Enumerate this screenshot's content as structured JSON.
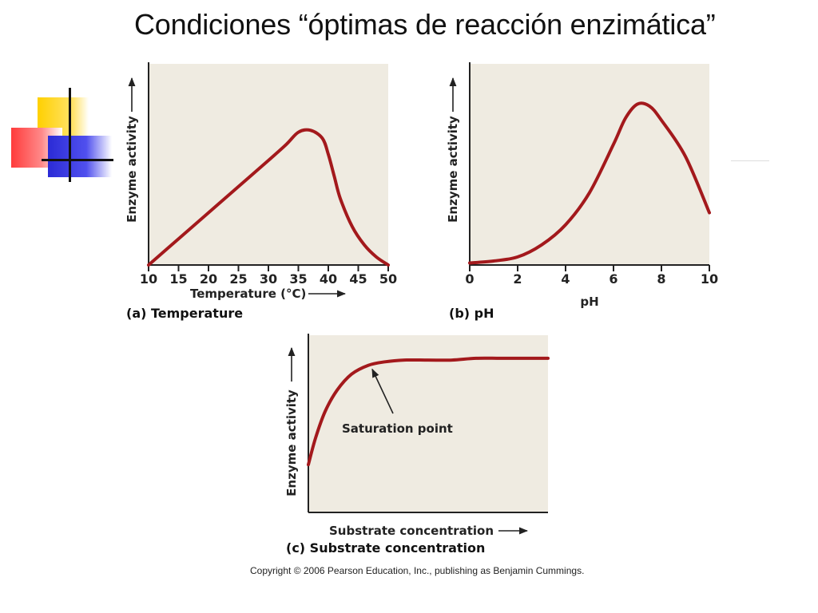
{
  "slide": {
    "title": "Condiciones “óptimas de reacción enzimática”",
    "copyright": "Copyright © 2006 Pearson Education, Inc., publishing as Benjamin Cummings."
  },
  "colors": {
    "curve": "#a3191c",
    "plot_bg": "#efebe1",
    "axis": "#222222"
  },
  "chart_data": [
    {
      "type": "line",
      "panel_label": "(a) Temperature",
      "ylabel": "Enzyme activity",
      "xlabel": "Temperature (°C)",
      "x_ticks": [
        "10",
        "15",
        "20",
        "25",
        "30",
        "35",
        "40",
        "45",
        "50"
      ],
      "xlim": [
        10,
        50
      ],
      "ylim": [
        0,
        1
      ],
      "series": [
        {
          "x": [
            10,
            15,
            20,
            25,
            30,
            33,
            35,
            37,
            39,
            40,
            41,
            42,
            44,
            46,
            48,
            50
          ],
          "y": [
            0.0,
            0.13,
            0.26,
            0.39,
            0.52,
            0.6,
            0.66,
            0.67,
            0.63,
            0.55,
            0.44,
            0.33,
            0.19,
            0.1,
            0.04,
            0.0
          ]
        }
      ]
    },
    {
      "type": "line",
      "panel_label": "(b) pH",
      "ylabel": "Enzyme activity",
      "xlabel": "pH",
      "x_ticks": [
        "0",
        "2",
        "4",
        "6",
        "8",
        "10"
      ],
      "xlim": [
        0,
        10
      ],
      "ylim": [
        0,
        1
      ],
      "series": [
        {
          "x": [
            0,
            1,
            2,
            3,
            4,
            5,
            6,
            6.5,
            7,
            7.5,
            8,
            9,
            10
          ],
          "y": [
            0.01,
            0.02,
            0.04,
            0.1,
            0.2,
            0.36,
            0.6,
            0.73,
            0.8,
            0.79,
            0.72,
            0.54,
            0.26
          ]
        }
      ]
    },
    {
      "type": "line",
      "panel_label": "(c) Substrate concentration",
      "ylabel": "Enzyme activity",
      "xlabel": "Substrate concentration",
      "annotation": "Saturation point",
      "xlim": [
        0,
        10
      ],
      "ylim": [
        0,
        1
      ],
      "series": [
        {
          "x": [
            0,
            0.3,
            0.7,
            1.2,
            1.8,
            2.5,
            3.2,
            4.0,
            5,
            6,
            7,
            8,
            9,
            10
          ],
          "y": [
            0.27,
            0.42,
            0.57,
            0.69,
            0.78,
            0.83,
            0.85,
            0.86,
            0.86,
            0.86,
            0.87,
            0.87,
            0.87,
            0.87
          ]
        }
      ]
    }
  ]
}
